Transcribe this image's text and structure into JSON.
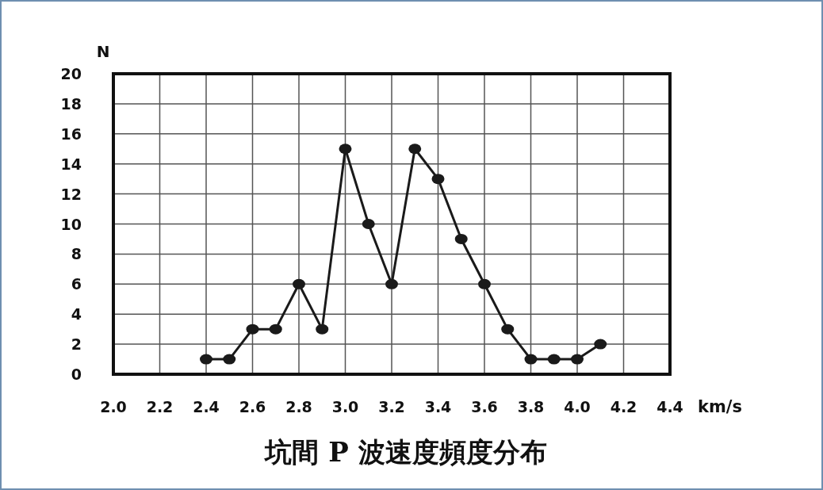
{
  "chart_data": {
    "type": "line",
    "title": "坑間 P 波速度頻度分布",
    "xlabel": "km/s",
    "ylabel": "N",
    "x": [
      2.4,
      2.5,
      2.6,
      2.7,
      2.8,
      2.9,
      3.0,
      3.1,
      3.2,
      3.3,
      3.4,
      3.5,
      3.6,
      3.7,
      3.8,
      3.9,
      4.0,
      4.1
    ],
    "values": [
      1,
      1,
      3,
      3,
      6,
      3,
      15,
      10,
      6,
      15,
      13,
      9,
      6,
      3,
      1,
      1,
      1,
      2
    ],
    "color": "#1a1a1a",
    "marker": "circle",
    "grid": true,
    "xlim": [
      2.0,
      4.4
    ],
    "xticks": [
      {
        "value": 2.0,
        "label": "2.0"
      },
      2.2,
      2.4,
      2.6,
      2.8,
      {
        "value": 3.0,
        "label": "3.0"
      },
      3.2,
      3.4,
      3.6,
      3.8,
      {
        "value": 4.0,
        "label": "4.0"
      },
      4.2,
      4.4
    ],
    "ylim": [
      0,
      20
    ],
    "yticks": [
      0,
      2,
      4,
      6,
      8,
      10,
      12,
      14,
      16,
      18,
      20
    ]
  }
}
